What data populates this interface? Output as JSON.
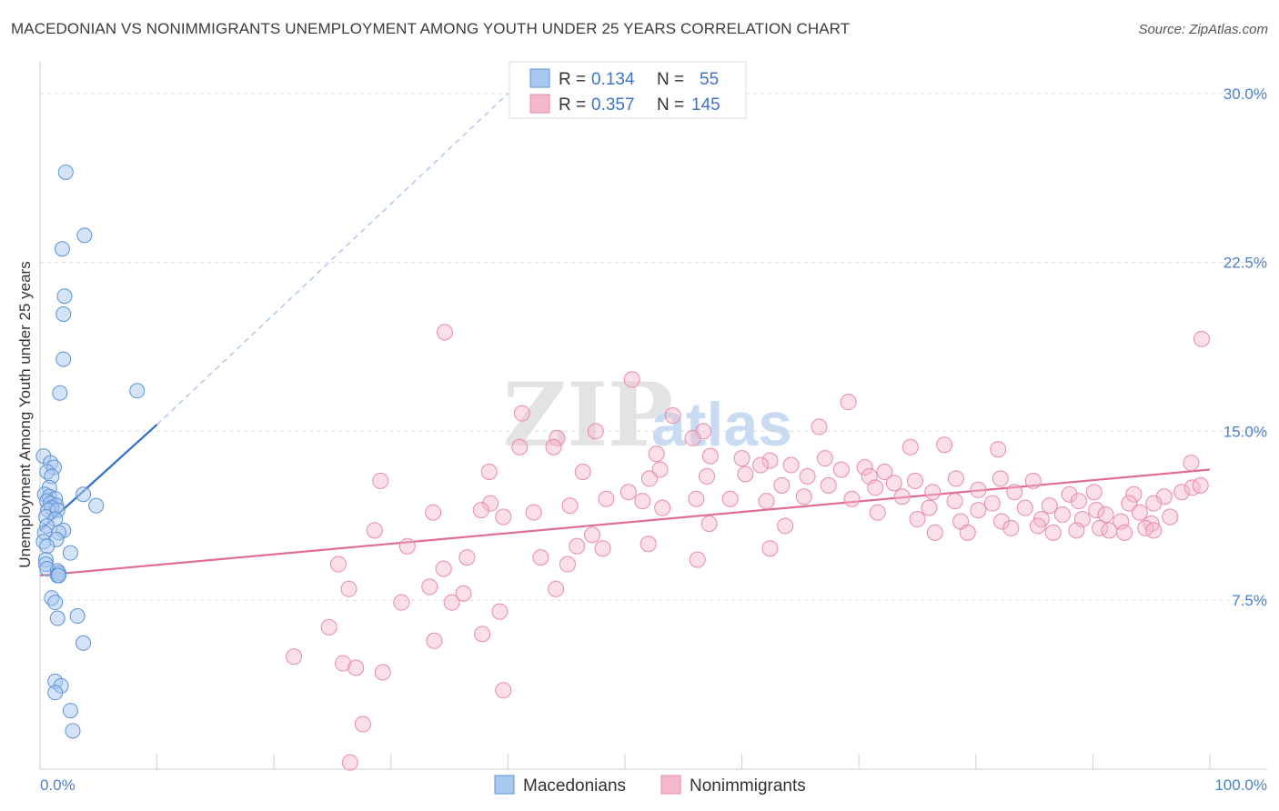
{
  "title": "MACEDONIAN VS NONIMMIGRANTS UNEMPLOYMENT AMONG YOUTH UNDER 25 YEARS CORRELATION CHART",
  "source": "Source: ZipAtlas.com",
  "watermark": {
    "part1": "ZIP",
    "part2": "atlas"
  },
  "legend": {
    "r_label": "R =",
    "n_label": "N =",
    "entries": [
      {
        "r": "0.134",
        "n": "55"
      },
      {
        "r": "0.357",
        "n": "145"
      }
    ]
  },
  "bottom_legend": [
    "Macedonians",
    "Nonimmigrants"
  ],
  "chart_data": {
    "type": "scatter",
    "ylabel": "Unemployment Among Youth under 25 years",
    "xlabel": "",
    "xlim": [
      0,
      100
    ],
    "ylim": [
      0,
      31
    ],
    "x_tick_labels": {
      "min": "0.0%",
      "max": "100.0%"
    },
    "y_ticks": [
      {
        "value": 7.5,
        "label": "7.5%"
      },
      {
        "value": 15.0,
        "label": "15.0%"
      },
      {
        "value": 22.5,
        "label": "22.5%"
      },
      {
        "value": 30.0,
        "label": "30.0%"
      }
    ],
    "grid": true,
    "legend_position": "top-center",
    "colors": {
      "macedonians_fill": "#a9c8ef",
      "macedonians_stroke": "#5b93d6",
      "macedonians_line": "#2f6fcc",
      "nonimmigrants_fill": "#f4b8cb",
      "nonimmigrants_stroke": "#e98aa8",
      "nonimmigrants_line": "#e06b93",
      "tick_text": "#4a7fc9"
    },
    "series": [
      {
        "name": "Macedonians",
        "trend": {
          "x0": 0,
          "y0": 10.6,
          "x1": 10,
          "y1": 15.3,
          "dash_to_x": 40,
          "dash_to_y": 30.0
        },
        "points": [
          [
            2.2,
            26.5
          ],
          [
            3.8,
            23.7
          ],
          [
            1.9,
            23.1
          ],
          [
            2.1,
            21.0
          ],
          [
            2.0,
            20.2
          ],
          [
            2.0,
            18.2
          ],
          [
            1.7,
            16.7
          ],
          [
            8.3,
            16.8
          ],
          [
            0.3,
            13.9
          ],
          [
            0.9,
            13.6
          ],
          [
            1.2,
            13.4
          ],
          [
            0.6,
            13.2
          ],
          [
            1.0,
            13.0
          ],
          [
            0.8,
            12.5
          ],
          [
            0.4,
            12.2
          ],
          [
            0.8,
            12.1
          ],
          [
            1.3,
            12.0
          ],
          [
            0.6,
            11.9
          ],
          [
            3.7,
            12.2
          ],
          [
            0.9,
            11.8
          ],
          [
            1.4,
            11.7
          ],
          [
            1.0,
            11.6
          ],
          [
            0.7,
            11.5
          ],
          [
            1.5,
            11.5
          ],
          [
            4.8,
            11.7
          ],
          [
            0.5,
            11.2
          ],
          [
            1.3,
            11.1
          ],
          [
            0.6,
            10.8
          ],
          [
            2.0,
            10.6
          ],
          [
            0.4,
            10.5
          ],
          [
            1.6,
            10.5
          ],
          [
            0.3,
            10.1
          ],
          [
            1.4,
            10.2
          ],
          [
            0.6,
            9.9
          ],
          [
            2.6,
            9.6
          ],
          [
            0.5,
            9.3
          ],
          [
            0.5,
            9.1
          ],
          [
            0.6,
            8.9
          ],
          [
            1.5,
            8.8
          ],
          [
            1.6,
            8.7
          ],
          [
            1.5,
            8.6
          ],
          [
            1.6,
            8.6
          ],
          [
            1.0,
            7.6
          ],
          [
            1.3,
            7.4
          ],
          [
            3.2,
            6.8
          ],
          [
            1.5,
            6.7
          ],
          [
            3.7,
            5.6
          ],
          [
            1.3,
            3.9
          ],
          [
            1.8,
            3.7
          ],
          [
            1.3,
            3.4
          ],
          [
            2.6,
            2.6
          ],
          [
            2.8,
            1.7
          ]
        ]
      },
      {
        "name": "Nonimmigrants",
        "trend": {
          "x0": 0,
          "y0": 8.6,
          "x1": 100,
          "y1": 13.3
        },
        "points": [
          [
            34.6,
            19.4
          ],
          [
            50.6,
            17.3
          ],
          [
            69.1,
            16.3
          ],
          [
            99.3,
            19.1
          ],
          [
            41.2,
            15.8
          ],
          [
            54.1,
            15.7
          ],
          [
            47.5,
            15.0
          ],
          [
            56.7,
            15.0
          ],
          [
            66.6,
            15.2
          ],
          [
            55.8,
            14.7
          ],
          [
            44.2,
            14.7
          ],
          [
            41.0,
            14.3
          ],
          [
            43.9,
            14.3
          ],
          [
            74.4,
            14.3
          ],
          [
            77.3,
            14.4
          ],
          [
            81.9,
            14.2
          ],
          [
            52.7,
            14.0
          ],
          [
            57.3,
            13.9
          ],
          [
            60.0,
            13.8
          ],
          [
            67.1,
            13.8
          ],
          [
            62.4,
            13.7
          ],
          [
            61.6,
            13.5
          ],
          [
            64.2,
            13.5
          ],
          [
            68.5,
            13.3
          ],
          [
            70.5,
            13.4
          ],
          [
            72.2,
            13.2
          ],
          [
            98.4,
            13.6
          ],
          [
            53.0,
            13.3
          ],
          [
            38.4,
            13.2
          ],
          [
            46.4,
            13.2
          ],
          [
            57.0,
            13.0
          ],
          [
            60.3,
            13.1
          ],
          [
            65.6,
            13.0
          ],
          [
            70.9,
            13.0
          ],
          [
            73.0,
            12.7
          ],
          [
            74.8,
            12.8
          ],
          [
            78.3,
            12.9
          ],
          [
            82.1,
            12.9
          ],
          [
            84.9,
            12.8
          ],
          [
            29.1,
            12.8
          ],
          [
            52.1,
            12.9
          ],
          [
            63.4,
            12.6
          ],
          [
            67.4,
            12.6
          ],
          [
            71.4,
            12.5
          ],
          [
            76.3,
            12.3
          ],
          [
            80.2,
            12.4
          ],
          [
            83.3,
            12.3
          ],
          [
            88.0,
            12.2
          ],
          [
            90.1,
            12.3
          ],
          [
            93.5,
            12.2
          ],
          [
            96.1,
            12.1
          ],
          [
            97.6,
            12.3
          ],
          [
            98.5,
            12.5
          ],
          [
            99.2,
            12.6
          ],
          [
            50.3,
            12.3
          ],
          [
            56.1,
            12.0
          ],
          [
            59.0,
            12.0
          ],
          [
            65.3,
            12.1
          ],
          [
            62.1,
            11.9
          ],
          [
            69.4,
            12.0
          ],
          [
            73.7,
            12.1
          ],
          [
            78.2,
            11.9
          ],
          [
            81.4,
            11.8
          ],
          [
            86.3,
            11.7
          ],
          [
            88.8,
            11.9
          ],
          [
            93.1,
            11.8
          ],
          [
            95.2,
            11.8
          ],
          [
            48.4,
            12.0
          ],
          [
            51.5,
            11.9
          ],
          [
            38.5,
            11.8
          ],
          [
            45.3,
            11.7
          ],
          [
            37.7,
            11.5
          ],
          [
            53.2,
            11.6
          ],
          [
            71.6,
            11.4
          ],
          [
            76.0,
            11.6
          ],
          [
            80.2,
            11.5
          ],
          [
            84.2,
            11.6
          ],
          [
            87.4,
            11.3
          ],
          [
            90.3,
            11.5
          ],
          [
            91.1,
            11.3
          ],
          [
            94.0,
            11.4
          ],
          [
            96.6,
            11.2
          ],
          [
            42.2,
            11.4
          ],
          [
            39.6,
            11.2
          ],
          [
            33.6,
            11.4
          ],
          [
            75.0,
            11.1
          ],
          [
            78.7,
            11.0
          ],
          [
            82.2,
            11.0
          ],
          [
            85.6,
            11.1
          ],
          [
            89.1,
            11.1
          ],
          [
            92.4,
            11.0
          ],
          [
            95.0,
            10.9
          ],
          [
            57.2,
            10.9
          ],
          [
            63.7,
            10.8
          ],
          [
            83.0,
            10.7
          ],
          [
            85.3,
            10.8
          ],
          [
            88.6,
            10.6
          ],
          [
            90.6,
            10.7
          ],
          [
            94.5,
            10.7
          ],
          [
            95.2,
            10.6
          ],
          [
            86.6,
            10.5
          ],
          [
            91.4,
            10.6
          ],
          [
            92.7,
            10.5
          ],
          [
            47.2,
            10.4
          ],
          [
            28.6,
            10.6
          ],
          [
            76.5,
            10.5
          ],
          [
            79.3,
            10.5
          ],
          [
            45.9,
            9.9
          ],
          [
            52.0,
            10.0
          ],
          [
            62.4,
            9.8
          ],
          [
            31.4,
            9.9
          ],
          [
            36.5,
            9.4
          ],
          [
            42.8,
            9.4
          ],
          [
            48.1,
            9.8
          ],
          [
            56.2,
            9.3
          ],
          [
            45.1,
            9.1
          ],
          [
            25.5,
            9.1
          ],
          [
            34.5,
            8.9
          ],
          [
            26.4,
            8.0
          ],
          [
            33.3,
            8.1
          ],
          [
            36.2,
            7.8
          ],
          [
            44.1,
            8.0
          ],
          [
            30.9,
            7.4
          ],
          [
            35.2,
            7.4
          ],
          [
            39.3,
            7.0
          ],
          [
            24.7,
            6.3
          ],
          [
            37.8,
            6.0
          ],
          [
            33.7,
            5.7
          ],
          [
            21.7,
            5.0
          ],
          [
            25.9,
            4.7
          ],
          [
            27.0,
            4.5
          ],
          [
            29.3,
            4.3
          ],
          [
            39.6,
            3.5
          ],
          [
            27.6,
            2.0
          ],
          [
            26.5,
            0.3
          ]
        ]
      }
    ]
  }
}
